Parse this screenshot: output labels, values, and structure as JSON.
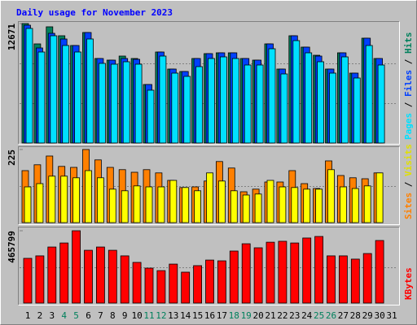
{
  "chart_data": [
    {
      "type": "bar",
      "title": "Daily usage for November 2023",
      "ylim": [
        0,
        12671
      ],
      "yticks": [
        12671
      ],
      "legend_reversed": true,
      "legend_separator": " / ",
      "series": [
        {
          "name": "Hits",
          "color": "#00805c",
          "values": [
            12671,
            10516,
            12327,
            11378,
            10344,
            11723,
            8965,
            8792,
            9223,
            8965,
            6206,
            9654,
            7844,
            7586,
            8965,
            9482,
            9568,
            9568,
            8965,
            8792,
            10516,
            7844,
            11378,
            10172,
            9309,
            7844,
            9568,
            7413,
            11120,
            8965,
            null
          ]
        },
        {
          "name": "Files",
          "color": "#0040ff",
          "values": [
            12499,
            10085,
            11637,
            11034,
            10344,
            11723,
            8965,
            8792,
            8965,
            8879,
            6206,
            9654,
            7844,
            7586,
            8965,
            9482,
            9568,
            9568,
            8965,
            8792,
            10516,
            7844,
            11378,
            10172,
            9223,
            7844,
            9568,
            7413,
            11120,
            8965,
            null
          ]
        },
        {
          "name": "Pages",
          "color": "#00e0ff",
          "values": [
            12154,
            9654,
            11378,
            10344,
            9654,
            11034,
            8448,
            8361,
            8620,
            8361,
            5603,
            9223,
            7413,
            7068,
            8103,
            8965,
            9137,
            8965,
            8275,
            8275,
            9999,
            7327,
            10861,
            9568,
            8620,
            7413,
            9137,
            6896,
            10344,
            8275,
            null
          ]
        }
      ]
    },
    {
      "type": "bar",
      "ylim": [
        0,
        225
      ],
      "yticks": [
        225
      ],
      "legend_reversed": false,
      "legend_separator": " / ",
      "series": [
        {
          "name": "Sites",
          "color": "#ff8000",
          "values": [
            160,
            178,
            205,
            173,
            170,
            225,
            193,
            170,
            163,
            155,
            163,
            153,
            130,
            108,
            110,
            128,
            188,
            168,
            95,
            103,
            125,
            125,
            160,
            120,
            105,
            190,
            145,
            138,
            135,
            153,
            null
          ]
        },
        {
          "name": "Visits",
          "color": "#ffff00",
          "values": [
            110,
            120,
            143,
            143,
            138,
            160,
            138,
            103,
            98,
            113,
            110,
            110,
            130,
            108,
            98,
            153,
            128,
            98,
            85,
            88,
            130,
            110,
            108,
            103,
            103,
            163,
            110,
            105,
            113,
            153,
            null
          ]
        }
      ]
    },
    {
      "type": "bar",
      "ylim": [
        0,
        465799
      ],
      "yticks": [
        465799
      ],
      "legend_reversed": false,
      "categories": [
        "1",
        "2",
        "3",
        "4",
        "5",
        "6",
        "7",
        "8",
        "9",
        "10",
        "11",
        "12",
        "13",
        "14",
        "15",
        "16",
        "17",
        "18",
        "19",
        "20",
        "21",
        "22",
        "23",
        "24",
        "25",
        "26",
        "27",
        "28",
        "29",
        "30",
        "31"
      ],
      "category_colors": [
        "#000000",
        "#000000",
        "#000000",
        "#00805c",
        "#00805c",
        "#000000",
        "#000000",
        "#000000",
        "#000000",
        "#000000",
        "#00805c",
        "#00805c",
        "#000000",
        "#000000",
        "#000000",
        "#000000",
        "#000000",
        "#00805c",
        "#00805c",
        "#000000",
        "#000000",
        "#000000",
        "#000000",
        "#000000",
        "#00805c",
        "#00805c",
        "#000000",
        "#000000",
        "#000000",
        "#000000",
        "#000000"
      ],
      "series": [
        {
          "name": "KBytes",
          "color": "#ff0000",
          "values": [
            288000,
            304000,
            361000,
            387000,
            465799,
            340000,
            361000,
            340000,
            304000,
            262000,
            225000,
            209000,
            251000,
            199000,
            241000,
            277000,
            272000,
            335000,
            382000,
            356000,
            392000,
            398000,
            387000,
            419000,
            429000,
            304000,
            304000,
            283000,
            319000,
            403000,
            null
          ]
        }
      ]
    }
  ]
}
